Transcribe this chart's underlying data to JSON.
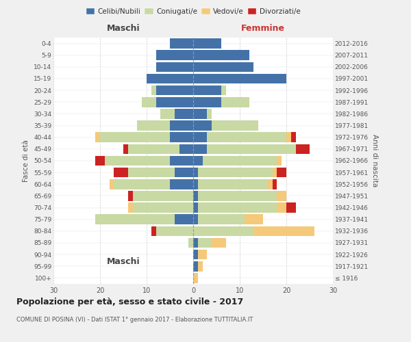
{
  "age_groups": [
    "100+",
    "95-99",
    "90-94",
    "85-89",
    "80-84",
    "75-79",
    "70-74",
    "65-69",
    "60-64",
    "55-59",
    "50-54",
    "45-49",
    "40-44",
    "35-39",
    "30-34",
    "25-29",
    "20-24",
    "15-19",
    "10-14",
    "5-9",
    "0-4"
  ],
  "birth_years": [
    "≤ 1916",
    "1917-1921",
    "1922-1926",
    "1927-1931",
    "1932-1936",
    "1937-1941",
    "1942-1946",
    "1947-1951",
    "1952-1956",
    "1957-1961",
    "1962-1966",
    "1967-1971",
    "1972-1976",
    "1977-1981",
    "1982-1986",
    "1987-1991",
    "1992-1996",
    "1997-2001",
    "2002-2006",
    "2007-2011",
    "2012-2016"
  ],
  "maschi": {
    "celibe": [
      0,
      0,
      0,
      0,
      0,
      4,
      0,
      0,
      5,
      4,
      5,
      3,
      5,
      5,
      4,
      8,
      8,
      10,
      8,
      8,
      5
    ],
    "coniugato": [
      0,
      0,
      0,
      1,
      8,
      17,
      13,
      13,
      12,
      10,
      14,
      11,
      15,
      7,
      3,
      3,
      1,
      0,
      0,
      0,
      0
    ],
    "vedovo": [
      0,
      0,
      0,
      0,
      0,
      0,
      1,
      0,
      1,
      0,
      0,
      0,
      1,
      0,
      0,
      0,
      0,
      0,
      0,
      0,
      0
    ],
    "divorziato": [
      0,
      0,
      0,
      0,
      1,
      0,
      0,
      1,
      0,
      3,
      2,
      1,
      0,
      0,
      0,
      0,
      0,
      0,
      0,
      0,
      0
    ]
  },
  "femmine": {
    "nubile": [
      0,
      1,
      1,
      1,
      0,
      1,
      1,
      1,
      1,
      1,
      2,
      3,
      3,
      4,
      3,
      6,
      6,
      20,
      13,
      12,
      6
    ],
    "coniugata": [
      0,
      0,
      0,
      3,
      13,
      10,
      17,
      17,
      15,
      16,
      16,
      19,
      17,
      10,
      1,
      6,
      1,
      0,
      0,
      0,
      0
    ],
    "vedova": [
      1,
      1,
      2,
      3,
      13,
      4,
      2,
      2,
      1,
      1,
      1,
      0,
      1,
      0,
      0,
      0,
      0,
      0,
      0,
      0,
      0
    ],
    "divorziata": [
      0,
      0,
      0,
      0,
      0,
      0,
      2,
      0,
      1,
      2,
      0,
      3,
      1,
      0,
      0,
      0,
      0,
      0,
      0,
      0,
      0
    ]
  },
  "colors": {
    "celibe": "#4472a8",
    "coniugato": "#c8d9a4",
    "vedovo": "#f5c97a",
    "divorziato": "#cc2222"
  },
  "legend_labels": [
    "Celibi/Nubili",
    "Coniugati/e",
    "Vedovi/e",
    "Divorziati/e"
  ],
  "title": "Popolazione per età, sesso e stato civile - 2017",
  "subtitle": "COMUNE DI POSINA (VI) - Dati ISTAT 1° gennaio 2017 - Elaborazione TUTTITALIA.IT",
  "xlabel_left": "Maschi",
  "xlabel_right": "Femmine",
  "ylabel_left": "Fasce di età",
  "ylabel_right": "Anni di nascita",
  "xlim": 30,
  "background_color": "#f0f0f0",
  "plot_bg": "#ffffff"
}
